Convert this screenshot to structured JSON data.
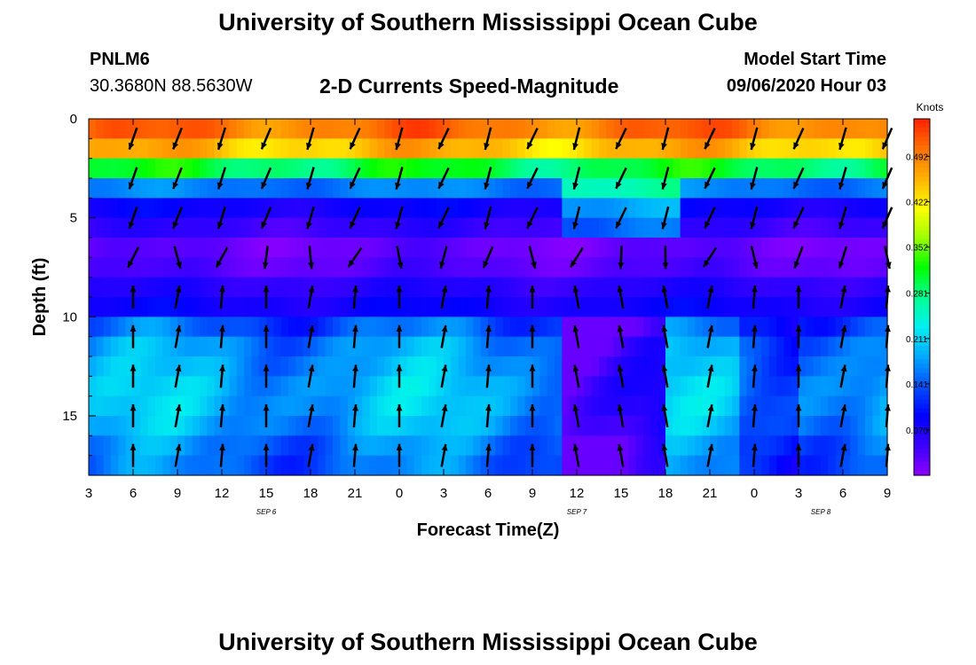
{
  "header": {
    "title": "University of Southern Mississippi Ocean Cube",
    "station_id": "PNLM6",
    "station_coords": "30.3680N 88.5630W",
    "chart_title": "2-D Currents Speed-Magnitude",
    "model_label": "Model Start Time",
    "model_time": "09/06/2020 Hour 03"
  },
  "footer": {
    "title": "University of Southern Mississippi Ocean Cube"
  },
  "chart_data": {
    "type": "heatmap",
    "title": "2-D Currents Speed-Magnitude",
    "xlabel": "Forecast Time(Z)",
    "ylabel": "Depth (ft)",
    "x_tick_labels": [
      "3",
      "6",
      "9",
      "12",
      "15",
      "18",
      "21",
      "0",
      "3",
      "6",
      "9",
      "12",
      "15",
      "18",
      "21",
      "0",
      "3",
      "6",
      "9"
    ],
    "x_range_hours": [
      0,
      54
    ],
    "x_tick_step_hours": 3,
    "date_labels": [
      {
        "text": "SEP 6",
        "at_hour": 12
      },
      {
        "text": "SEP 7",
        "at_hour": 33
      },
      {
        "text": "SEP 8",
        "at_hour": 49.5
      }
    ],
    "y_tick_labels": [
      "0",
      "5",
      "10",
      "15"
    ],
    "y_ticks": [
      0,
      5,
      10,
      15
    ],
    "y_range": [
      0,
      18
    ],
    "colorbar": {
      "units": "Knots",
      "min": 0.0,
      "max": 0.55,
      "tick_labels": [
        "0.492",
        "0.422",
        "0.352",
        "0.281",
        "0.211",
        "0.141",
        "0.070"
      ],
      "colors": [
        "#8b00ff",
        "#3a00ff",
        "#0000ff",
        "#0050ff",
        "#00aaff",
        "#00f0f0",
        "#00ff90",
        "#00ff00",
        "#9fff00",
        "#ffff00",
        "#ffb000",
        "#ff7000",
        "#ff2000"
      ]
    },
    "depth_speed_profile": [
      {
        "depth": 0.5,
        "speed": 0.5
      },
      {
        "depth": 1.5,
        "speed": 0.45
      },
      {
        "depth": 2.5,
        "speed": 0.3
      },
      {
        "depth": 3.5,
        "speed": 0.16
      },
      {
        "depth": 4.5,
        "speed": 0.08
      },
      {
        "depth": 5.5,
        "speed": 0.05
      },
      {
        "depth": 6.5,
        "speed": 0.02
      },
      {
        "depth": 7.5,
        "speed": 0.03
      },
      {
        "depth": 8.5,
        "speed": 0.06
      },
      {
        "depth": 9.5,
        "speed": 0.08
      },
      {
        "depth": 10.5,
        "speed": 0.14
      },
      {
        "depth": 11.5,
        "speed": 0.17
      },
      {
        "depth": 12.5,
        "speed": 0.18
      },
      {
        "depth": 13.5,
        "speed": 0.19
      },
      {
        "depth": 14.5,
        "speed": 0.19
      },
      {
        "depth": 15.5,
        "speed": 0.18
      },
      {
        "depth": 16.5,
        "speed": 0.16
      },
      {
        "depth": 17.5,
        "speed": 0.15
      }
    ],
    "vector_columns_hours": [
      3,
      6,
      9,
      12,
      15,
      18,
      21,
      24,
      27,
      30,
      33,
      36,
      39,
      42,
      45,
      48,
      51,
      54
    ],
    "vector_rows_depth": [
      1,
      3,
      5,
      7,
      9,
      11,
      13,
      15,
      17
    ]
  }
}
